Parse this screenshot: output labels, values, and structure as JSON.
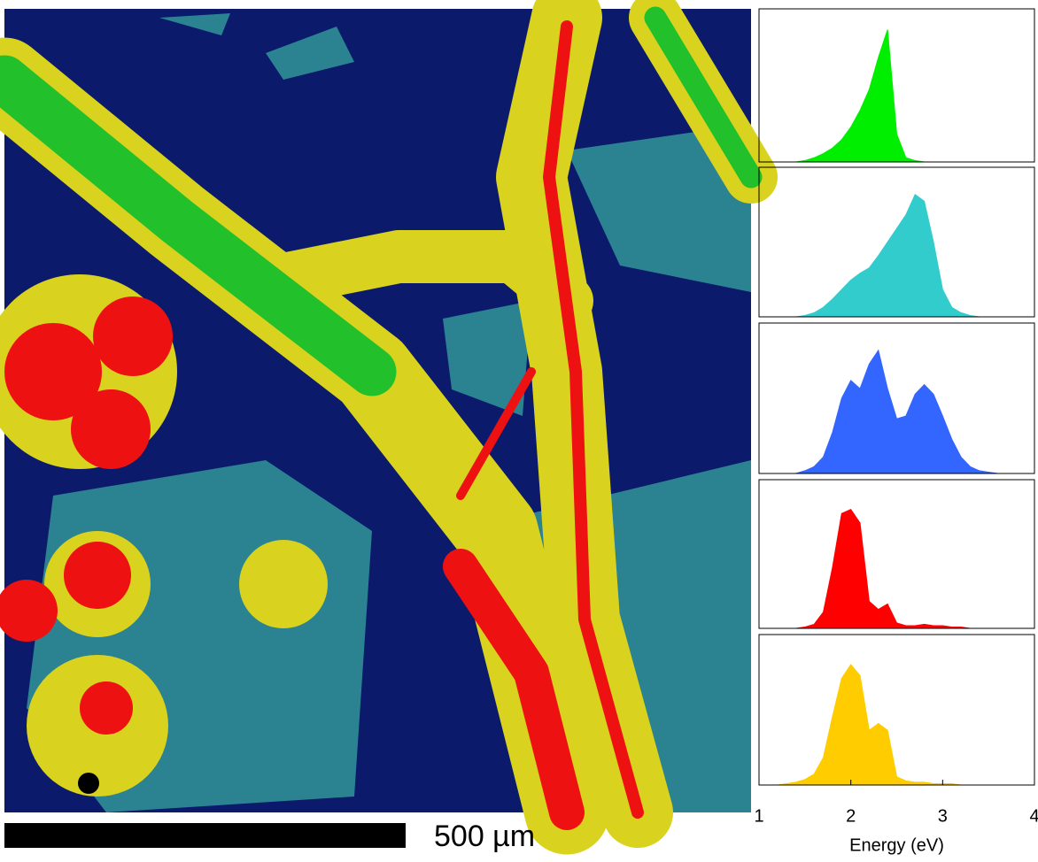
{
  "image": {
    "scale_bar_label": "500 µm"
  },
  "chart_data": [
    {
      "type": "area",
      "color": "#00ee00",
      "xlim": [
        1,
        4
      ],
      "ylim": [
        0,
        1.1
      ],
      "x": [
        1.2,
        1.3,
        1.4,
        1.5,
        1.6,
        1.7,
        1.8,
        1.9,
        2.0,
        2.1,
        2.2,
        2.3,
        2.4,
        2.5,
        2.6,
        2.7,
        2.8,
        2.9,
        3.0,
        3.1,
        3.2,
        3.3,
        3.4,
        3.5,
        3.6
      ],
      "values": [
        0,
        0,
        0,
        0.01,
        0.03,
        0.06,
        0.1,
        0.16,
        0.25,
        0.37,
        0.52,
        0.75,
        0.95,
        0.2,
        0.03,
        0.01,
        0,
        0,
        0,
        0,
        0,
        0,
        0,
        0,
        0
      ]
    },
    {
      "type": "area",
      "color": "#33cccc",
      "xlim": [
        1,
        4
      ],
      "ylim": [
        0,
        1.1
      ],
      "x": [
        1.2,
        1.3,
        1.4,
        1.5,
        1.6,
        1.7,
        1.8,
        1.9,
        2.0,
        2.1,
        2.2,
        2.3,
        2.4,
        2.5,
        2.6,
        2.7,
        2.8,
        2.9,
        3.0,
        3.1,
        3.2,
        3.3,
        3.4,
        3.5,
        3.6
      ],
      "values": [
        0,
        0,
        0,
        0.01,
        0.03,
        0.07,
        0.13,
        0.2,
        0.27,
        0.32,
        0.36,
        0.45,
        0.55,
        0.65,
        0.75,
        0.9,
        0.85,
        0.55,
        0.2,
        0.07,
        0.03,
        0.01,
        0,
        0,
        0
      ]
    },
    {
      "type": "area",
      "color": "#3366ff",
      "xlim": [
        1,
        4
      ],
      "ylim": [
        0,
        1.1
      ],
      "x": [
        1.2,
        1.3,
        1.4,
        1.5,
        1.6,
        1.7,
        1.8,
        1.9,
        2.0,
        2.1,
        2.2,
        2.3,
        2.4,
        2.5,
        2.6,
        2.7,
        2.8,
        2.9,
        3.0,
        3.1,
        3.2,
        3.3,
        3.4,
        3.5,
        3.6
      ],
      "values": [
        0,
        0,
        0,
        0.02,
        0.05,
        0.12,
        0.3,
        0.55,
        0.68,
        0.62,
        0.8,
        0.9,
        0.62,
        0.4,
        0.42,
        0.58,
        0.65,
        0.58,
        0.42,
        0.25,
        0.12,
        0.05,
        0.02,
        0.01,
        0
      ]
    },
    {
      "type": "area",
      "color": "#ff0000",
      "xlim": [
        1,
        4
      ],
      "ylim": [
        0,
        1.1
      ],
      "x": [
        1.2,
        1.3,
        1.4,
        1.5,
        1.6,
        1.7,
        1.8,
        1.9,
        2.0,
        2.1,
        2.2,
        2.3,
        2.4,
        2.5,
        2.6,
        2.7,
        2.8,
        2.9,
        3.0,
        3.1,
        3.2,
        3.3,
        3.4,
        3.5,
        3.6
      ],
      "values": [
        0,
        0,
        0,
        0.01,
        0.03,
        0.12,
        0.45,
        0.85,
        0.88,
        0.78,
        0.2,
        0.14,
        0.18,
        0.04,
        0.02,
        0.02,
        0.03,
        0.02,
        0.02,
        0.01,
        0.01,
        0,
        0,
        0,
        0
      ]
    },
    {
      "type": "area",
      "color": "#ffcc00",
      "xlim": [
        1,
        4
      ],
      "ylim": [
        0,
        1.1
      ],
      "x": [
        1.2,
        1.3,
        1.4,
        1.5,
        1.6,
        1.7,
        1.8,
        1.9,
        2.0,
        2.1,
        2.2,
        2.3,
        2.4,
        2.5,
        2.6,
        2.7,
        2.8,
        2.9,
        3.0,
        3.1,
        3.2,
        3.3,
        3.4,
        3.5,
        3.6
      ],
      "values": [
        0,
        0.01,
        0.02,
        0.04,
        0.08,
        0.2,
        0.5,
        0.78,
        0.88,
        0.8,
        0.4,
        0.45,
        0.4,
        0.06,
        0.03,
        0.02,
        0.02,
        0.01,
        0.01,
        0.01,
        0,
        0,
        0,
        0,
        0
      ],
      "xticks": [
        1,
        2,
        3,
        4
      ],
      "xlabel": "Energy (eV)"
    }
  ]
}
